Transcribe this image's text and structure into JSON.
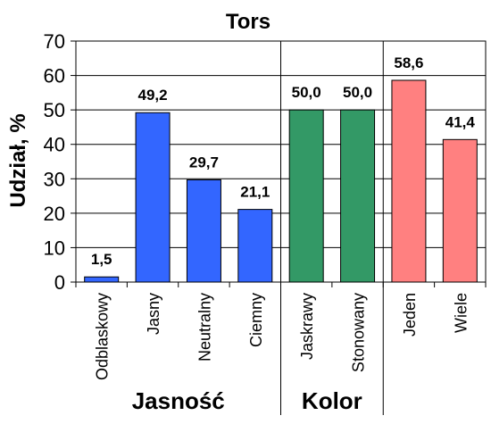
{
  "chart_data": {
    "type": "bar",
    "title": "Tors",
    "ylabel": "Udział, %",
    "ylim": [
      0,
      70
    ],
    "yticks": [
      "0",
      "10",
      "20",
      "30",
      "40",
      "50",
      "60",
      "70"
    ],
    "grid": true,
    "bars": [
      {
        "category": "Odblaskowy",
        "value": 1.5,
        "label": "1,5",
        "color": "#3366ff",
        "group": 0
      },
      {
        "category": "Jasny",
        "value": 49.2,
        "label": "49,2",
        "color": "#3366ff",
        "group": 0
      },
      {
        "category": "Neutralny",
        "value": 29.7,
        "label": "29,7",
        "color": "#3366ff",
        "group": 0
      },
      {
        "category": "Ciemny",
        "value": 21.1,
        "label": "21,1",
        "color": "#3366ff",
        "group": 0
      },
      {
        "category": "Jaskrawy",
        "value": 50.0,
        "label": "50,0",
        "color": "#339966",
        "group": 1
      },
      {
        "category": "Stonowany",
        "value": 50.0,
        "label": "50,0",
        "color": "#339966",
        "group": 1
      },
      {
        "category": "Jeden",
        "value": 58.6,
        "label": "58,6",
        "color": "#ff8080",
        "group": 2
      },
      {
        "category": "Wiele",
        "value": 41.4,
        "label": "41,4",
        "color": "#ff8080",
        "group": 2
      }
    ],
    "groups": [
      {
        "label": "Jasność"
      },
      {
        "label": "Kolor"
      },
      {
        "label": ""
      }
    ]
  }
}
